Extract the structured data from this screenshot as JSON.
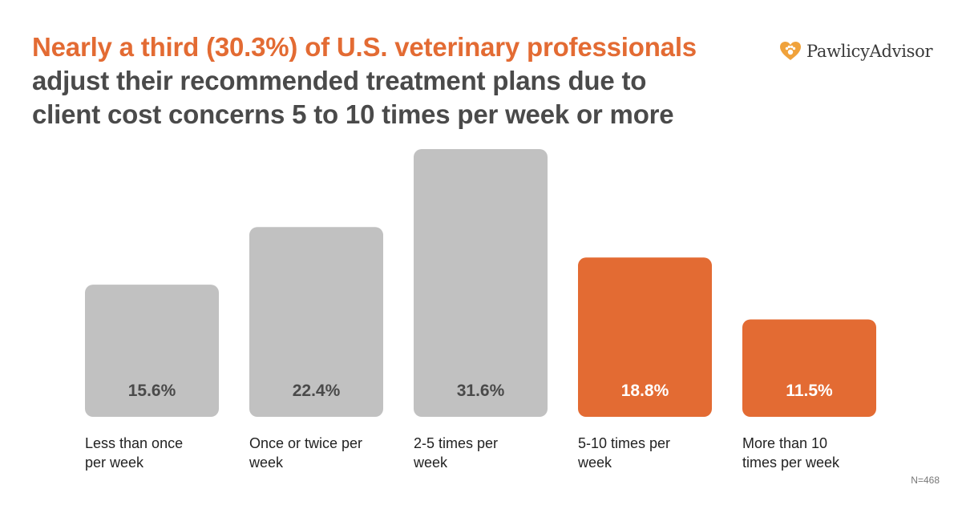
{
  "title": {
    "line1": "Nearly a third (30.3%) of U.S. veterinary professionals",
    "line2": "adjust their recommended treatment plans due to",
    "line3": "client cost concerns 5 to 10 times per week or more"
  },
  "logo": {
    "brand_text": "PawlicyAdvisor",
    "icon_name": "heart-paw-icon",
    "icon_color": "#f0a23b"
  },
  "footnote": "N=468",
  "colors": {
    "accent": "#e36b33",
    "neutral_bar": "#c1c1c1",
    "title_dark": "#4a4a4a",
    "neutral_label": "#4a4a4a",
    "accent_label": "#ffffff"
  },
  "chart_data": {
    "type": "bar",
    "categories": [
      [
        "Less than once",
        "per week"
      ],
      [
        "Once or twice per",
        "week"
      ],
      [
        "2-5 times per",
        "week"
      ],
      [
        "5-10 times per",
        "week"
      ],
      [
        "More than 10",
        "times per week"
      ]
    ],
    "values": [
      15.6,
      22.4,
      31.6,
      18.8,
      11.5
    ],
    "value_labels": [
      "15.6%",
      "22.4%",
      "31.6%",
      "18.8%",
      "11.5%"
    ],
    "highlighted": [
      false,
      false,
      false,
      true,
      true
    ],
    "ylim": [
      0,
      31.6
    ],
    "grid": false,
    "legend": "none"
  }
}
